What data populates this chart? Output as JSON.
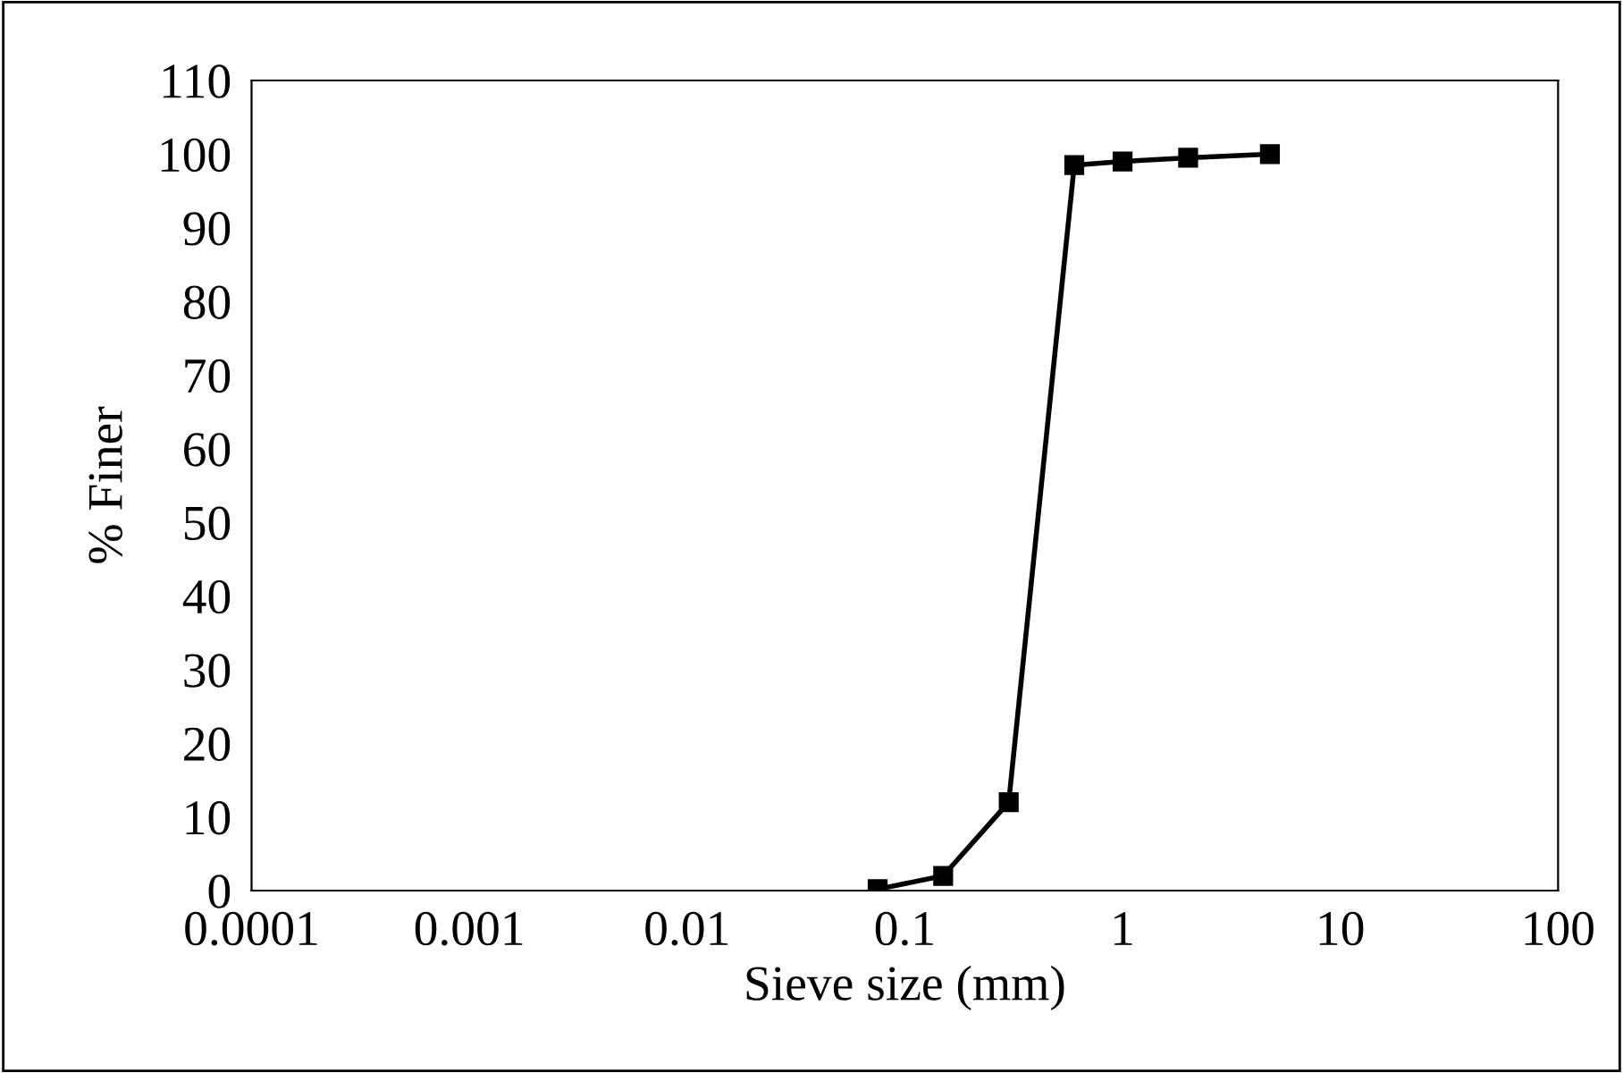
{
  "chart_data": {
    "type": "line",
    "xlabel": "Sieve size (mm)",
    "ylabel": "% Finer",
    "x": [
      0.075,
      0.15,
      0.3,
      0.6,
      1,
      2,
      4.75
    ],
    "series": [
      {
        "color": "#000000",
        "values": [
          0.2,
          2,
          12,
          98.5,
          99,
          99.5,
          100
        ]
      }
    ],
    "log": "x",
    "xlim": [
      0.0001,
      100
    ],
    "xticks": [
      0.0001,
      0.001,
      0.01,
      0.1,
      1,
      10,
      100
    ],
    "ylim": [
      0,
      110
    ],
    "yticks": [
      0,
      10,
      20,
      30,
      40,
      50,
      60,
      70,
      80,
      90,
      100,
      110
    ],
    "marker": "square",
    "line_style": "solid",
    "grid": false
  }
}
